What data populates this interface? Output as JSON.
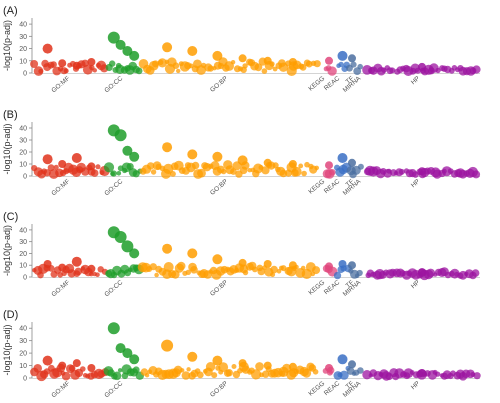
{
  "figure": {
    "type": "manhattan",
    "ylabel": "-log10(p-adj)",
    "ylim": [
      0,
      45
    ],
    "yticks": [
      "0",
      "10",
      "20",
      "30",
      "40"
    ],
    "sources": [
      {
        "id": "GOMF",
        "label": "GO:MF",
        "color": "#e0331b"
      },
      {
        "id": "GOCC",
        "label": "GO:CC",
        "color": "#1f9e2a"
      },
      {
        "id": "GOBP",
        "label": "GO:BP",
        "color": "#ff9d00"
      },
      {
        "id": "KEGG",
        "label": "KEGG",
        "color": "#e0467c"
      },
      {
        "id": "REAC",
        "label": "REAC",
        "color": "#3a6fc4"
      },
      {
        "id": "TF",
        "label": "TF",
        "color": "#4b6fa0"
      },
      {
        "id": "MIRNA",
        "label": "MIRNA",
        "color": "#4b6fa0"
      },
      {
        "id": "HP",
        "label": "HP",
        "color": "#9c14a0"
      }
    ]
  },
  "chart_data": [
    {
      "type": "scatter",
      "panel_label": "(A)",
      "ylabel": "-log10(p-adj)",
      "ylim": [
        0,
        45
      ],
      "highlights": [
        {
          "source": "GOMF",
          "value": 20
        },
        {
          "source": "GOMF",
          "value": 8
        },
        {
          "source": "GOMF",
          "value": 6
        },
        {
          "source": "GOMF",
          "value": 9
        },
        {
          "source": "GOCC",
          "value": 29
        },
        {
          "source": "GOCC",
          "value": 23
        },
        {
          "source": "GOCC",
          "value": 18
        },
        {
          "source": "GOCC",
          "value": 14
        },
        {
          "source": "GOBP",
          "value": 21
        },
        {
          "source": "GOBP",
          "value": 18
        },
        {
          "source": "GOBP",
          "value": 14
        },
        {
          "source": "GOBP",
          "value": 12
        },
        {
          "source": "GOBP",
          "value": 10
        },
        {
          "source": "GOBP",
          "value": 9
        },
        {
          "source": "KEGG",
          "value": 10
        },
        {
          "source": "REAC",
          "value": 14
        },
        {
          "source": "TF",
          "value": 12
        },
        {
          "source": "HP",
          "value": 5
        }
      ]
    },
    {
      "type": "scatter",
      "panel_label": "(B)",
      "ylabel": "-log10(p-adj)",
      "ylim": [
        0,
        45
      ],
      "highlights": [
        {
          "source": "GOMF",
          "value": 14
        },
        {
          "source": "GOMF",
          "value": 10
        },
        {
          "source": "GOMF",
          "value": 15
        },
        {
          "source": "GOMF",
          "value": 8
        },
        {
          "source": "GOCC",
          "value": 38
        },
        {
          "source": "GOCC",
          "value": 34
        },
        {
          "source": "GOCC",
          "value": 21
        },
        {
          "source": "GOCC",
          "value": 16
        },
        {
          "source": "GOBP",
          "value": 24
        },
        {
          "source": "GOBP",
          "value": 18
        },
        {
          "source": "GOBP",
          "value": 16
        },
        {
          "source": "GOBP",
          "value": 13
        },
        {
          "source": "GOBP",
          "value": 11
        },
        {
          "source": "GOBP",
          "value": 10
        },
        {
          "source": "KEGG",
          "value": 9
        },
        {
          "source": "REAC",
          "value": 15
        },
        {
          "source": "TF",
          "value": 11
        },
        {
          "source": "HP",
          "value": 4
        }
      ]
    },
    {
      "type": "scatter",
      "panel_label": "(C)",
      "ylabel": "-log10(p-adj)",
      "ylim": [
        0,
        45
      ],
      "highlights": [
        {
          "source": "GOMF",
          "value": 11
        },
        {
          "source": "GOMF",
          "value": 8
        },
        {
          "source": "GOMF",
          "value": 13
        },
        {
          "source": "GOMF",
          "value": 7
        },
        {
          "source": "GOCC",
          "value": 38
        },
        {
          "source": "GOCC",
          "value": 34
        },
        {
          "source": "GOCC",
          "value": 26
        },
        {
          "source": "GOCC",
          "value": 20
        },
        {
          "source": "GOBP",
          "value": 24
        },
        {
          "source": "GOBP",
          "value": 20
        },
        {
          "source": "GOBP",
          "value": 15
        },
        {
          "source": "GOBP",
          "value": 12
        },
        {
          "source": "GOBP",
          "value": 11
        },
        {
          "source": "GOBP",
          "value": 10
        },
        {
          "source": "KEGG",
          "value": 9
        },
        {
          "source": "REAC",
          "value": 11
        },
        {
          "source": "TF",
          "value": 10
        },
        {
          "source": "HP",
          "value": 4
        }
      ]
    },
    {
      "type": "scatter",
      "panel_label": "(D)",
      "ylabel": "-log10(p-adj)",
      "ylim": [
        0,
        45
      ],
      "highlights": [
        {
          "source": "GOMF",
          "value": 14
        },
        {
          "source": "GOMF",
          "value": 10
        },
        {
          "source": "GOMF",
          "value": 12
        },
        {
          "source": "GOMF",
          "value": 8
        },
        {
          "source": "GOCC",
          "value": 40
        },
        {
          "source": "GOCC",
          "value": 24
        },
        {
          "source": "GOCC",
          "value": 20
        },
        {
          "source": "GOCC",
          "value": 15
        },
        {
          "source": "GOBP",
          "value": 26
        },
        {
          "source": "GOBP",
          "value": 17
        },
        {
          "source": "GOBP",
          "value": 14
        },
        {
          "source": "GOBP",
          "value": 12
        },
        {
          "source": "GOBP",
          "value": 10
        },
        {
          "source": "GOBP",
          "value": 9
        },
        {
          "source": "KEGG",
          "value": 8
        },
        {
          "source": "REAC",
          "value": 15
        },
        {
          "source": "TF",
          "value": 11
        },
        {
          "source": "HP",
          "value": 4
        }
      ]
    }
  ]
}
